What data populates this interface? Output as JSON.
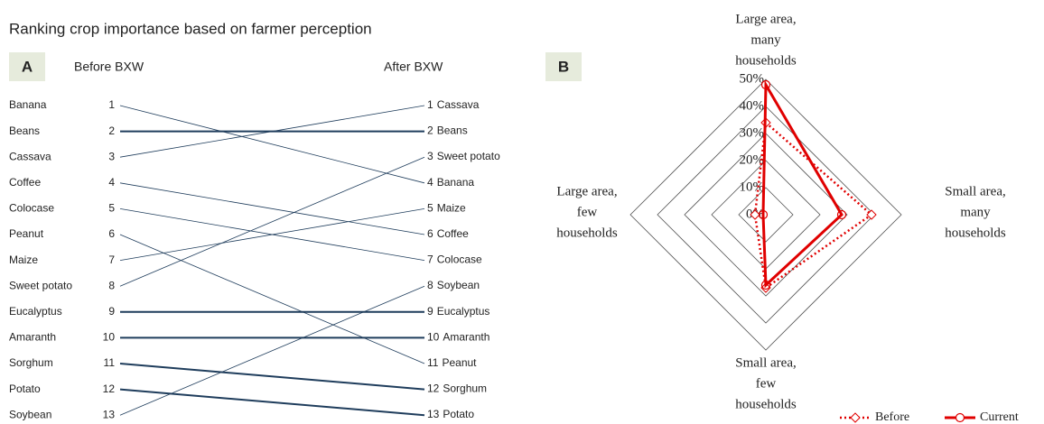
{
  "chart_data": [
    {
      "type": "slope",
      "title": "Ranking crop importance based on farmer perception",
      "panel": "A",
      "left_label": "Before BXW",
      "right_label": "After BXW",
      "color": "#1f3d5c",
      "crops": [
        {
          "name": "Banana",
          "before": 1,
          "after": 4
        },
        {
          "name": "Beans",
          "before": 2,
          "after": 2
        },
        {
          "name": "Cassava",
          "before": 3,
          "after": 1
        },
        {
          "name": "Coffee",
          "before": 4,
          "after": 6
        },
        {
          "name": "Colocase",
          "before": 5,
          "after": 7
        },
        {
          "name": "Peanut",
          "before": 6,
          "after": 11
        },
        {
          "name": "Maize",
          "before": 7,
          "after": 5
        },
        {
          "name": "Sweet potato",
          "before": 8,
          "after": 3
        },
        {
          "name": "Eucalyptus",
          "before": 9,
          "after": 9
        },
        {
          "name": "Amaranth",
          "before": 10,
          "after": 10
        },
        {
          "name": "Sorghum",
          "before": 11,
          "after": 12
        },
        {
          "name": "Potato",
          "before": 12,
          "after": 13
        },
        {
          "name": "Soybean",
          "before": 13,
          "after": 8
        }
      ]
    },
    {
      "type": "radar",
      "panel": "B",
      "axes": [
        [
          "Large area,",
          "many",
          "households"
        ],
        [
          "Small area,",
          "many",
          "households"
        ],
        [
          "Small area,",
          "few",
          "households"
        ],
        [
          "Large area,",
          "few",
          "households"
        ]
      ],
      "rlim": [
        0,
        50
      ],
      "rticks": [
        {
          "value": 0,
          "label": "0%"
        },
        {
          "value": 10,
          "label": "10%"
        },
        {
          "value": 20,
          "label": "20%"
        },
        {
          "value": 30,
          "label": "30%"
        },
        {
          "value": 40,
          "label": "40%"
        },
        {
          "value": 50,
          "label": "50%"
        }
      ],
      "series": [
        {
          "name": "Before",
          "color": "#e00000",
          "values": [
            34,
            39,
            27,
            4
          ]
        },
        {
          "name": "Current",
          "color": "#e00000",
          "values": [
            48,
            28,
            26,
            1
          ]
        }
      ]
    }
  ]
}
